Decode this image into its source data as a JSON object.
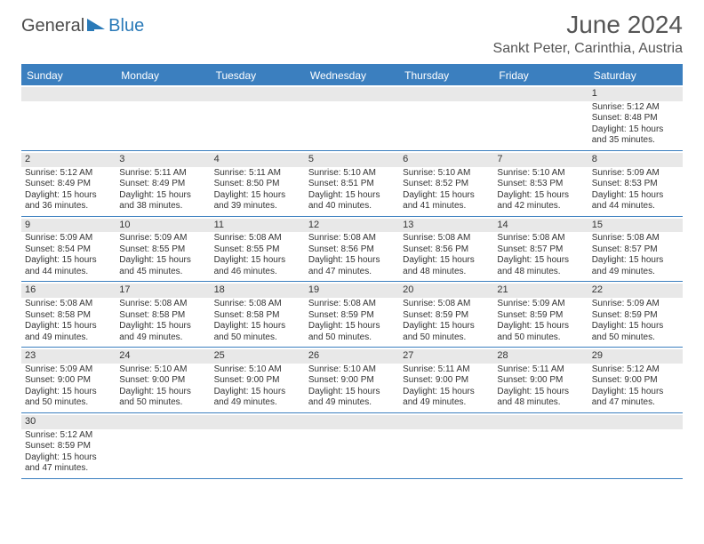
{
  "logo": {
    "word1": "General",
    "word2": "Blue"
  },
  "title": "June 2024",
  "location": "Sankt Peter, Carinthia, Austria",
  "colors": {
    "header_bg": "#3b7fbf",
    "header_text": "#ffffff",
    "daynum_bg": "#e8e8e8",
    "border": "#3b7fbf",
    "text": "#333333",
    "logo_dark": "#4a4a4a",
    "logo_blue": "#2a7ab8"
  },
  "weekdays": [
    "Sunday",
    "Monday",
    "Tuesday",
    "Wednesday",
    "Thursday",
    "Friday",
    "Saturday"
  ],
  "weeks": [
    [
      null,
      null,
      null,
      null,
      null,
      null,
      {
        "n": "1",
        "sr": "5:12 AM",
        "ss": "8:48 PM",
        "dl": "15 hours and 35 minutes."
      }
    ],
    [
      {
        "n": "2",
        "sr": "5:12 AM",
        "ss": "8:49 PM",
        "dl": "15 hours and 36 minutes."
      },
      {
        "n": "3",
        "sr": "5:11 AM",
        "ss": "8:49 PM",
        "dl": "15 hours and 38 minutes."
      },
      {
        "n": "4",
        "sr": "5:11 AM",
        "ss": "8:50 PM",
        "dl": "15 hours and 39 minutes."
      },
      {
        "n": "5",
        "sr": "5:10 AM",
        "ss": "8:51 PM",
        "dl": "15 hours and 40 minutes."
      },
      {
        "n": "6",
        "sr": "5:10 AM",
        "ss": "8:52 PM",
        "dl": "15 hours and 41 minutes."
      },
      {
        "n": "7",
        "sr": "5:10 AM",
        "ss": "8:53 PM",
        "dl": "15 hours and 42 minutes."
      },
      {
        "n": "8",
        "sr": "5:09 AM",
        "ss": "8:53 PM",
        "dl": "15 hours and 44 minutes."
      }
    ],
    [
      {
        "n": "9",
        "sr": "5:09 AM",
        "ss": "8:54 PM",
        "dl": "15 hours and 44 minutes."
      },
      {
        "n": "10",
        "sr": "5:09 AM",
        "ss": "8:55 PM",
        "dl": "15 hours and 45 minutes."
      },
      {
        "n": "11",
        "sr": "5:08 AM",
        "ss": "8:55 PM",
        "dl": "15 hours and 46 minutes."
      },
      {
        "n": "12",
        "sr": "5:08 AM",
        "ss": "8:56 PM",
        "dl": "15 hours and 47 minutes."
      },
      {
        "n": "13",
        "sr": "5:08 AM",
        "ss": "8:56 PM",
        "dl": "15 hours and 48 minutes."
      },
      {
        "n": "14",
        "sr": "5:08 AM",
        "ss": "8:57 PM",
        "dl": "15 hours and 48 minutes."
      },
      {
        "n": "15",
        "sr": "5:08 AM",
        "ss": "8:57 PM",
        "dl": "15 hours and 49 minutes."
      }
    ],
    [
      {
        "n": "16",
        "sr": "5:08 AM",
        "ss": "8:58 PM",
        "dl": "15 hours and 49 minutes."
      },
      {
        "n": "17",
        "sr": "5:08 AM",
        "ss": "8:58 PM",
        "dl": "15 hours and 49 minutes."
      },
      {
        "n": "18",
        "sr": "5:08 AM",
        "ss": "8:58 PM",
        "dl": "15 hours and 50 minutes."
      },
      {
        "n": "19",
        "sr": "5:08 AM",
        "ss": "8:59 PM",
        "dl": "15 hours and 50 minutes."
      },
      {
        "n": "20",
        "sr": "5:08 AM",
        "ss": "8:59 PM",
        "dl": "15 hours and 50 minutes."
      },
      {
        "n": "21",
        "sr": "5:09 AM",
        "ss": "8:59 PM",
        "dl": "15 hours and 50 minutes."
      },
      {
        "n": "22",
        "sr": "5:09 AM",
        "ss": "8:59 PM",
        "dl": "15 hours and 50 minutes."
      }
    ],
    [
      {
        "n": "23",
        "sr": "5:09 AM",
        "ss": "9:00 PM",
        "dl": "15 hours and 50 minutes."
      },
      {
        "n": "24",
        "sr": "5:10 AM",
        "ss": "9:00 PM",
        "dl": "15 hours and 50 minutes."
      },
      {
        "n": "25",
        "sr": "5:10 AM",
        "ss": "9:00 PM",
        "dl": "15 hours and 49 minutes."
      },
      {
        "n": "26",
        "sr": "5:10 AM",
        "ss": "9:00 PM",
        "dl": "15 hours and 49 minutes."
      },
      {
        "n": "27",
        "sr": "5:11 AM",
        "ss": "9:00 PM",
        "dl": "15 hours and 49 minutes."
      },
      {
        "n": "28",
        "sr": "5:11 AM",
        "ss": "9:00 PM",
        "dl": "15 hours and 48 minutes."
      },
      {
        "n": "29",
        "sr": "5:12 AM",
        "ss": "9:00 PM",
        "dl": "15 hours and 47 minutes."
      }
    ],
    [
      {
        "n": "30",
        "sr": "5:12 AM",
        "ss": "8:59 PM",
        "dl": "15 hours and 47 minutes."
      },
      null,
      null,
      null,
      null,
      null,
      null
    ]
  ],
  "labels": {
    "sunrise": "Sunrise:",
    "sunset": "Sunset:",
    "daylight": "Daylight:"
  }
}
